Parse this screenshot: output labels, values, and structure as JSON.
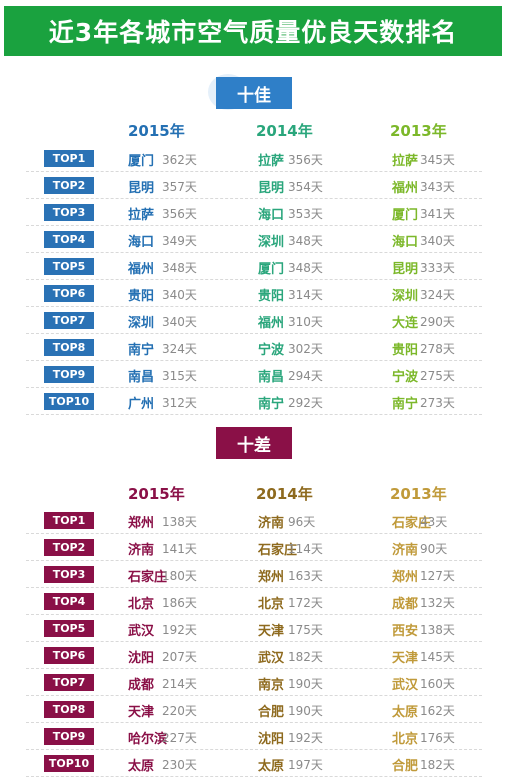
{
  "title": "近3年各城市空气质量优良天数排名",
  "best": {
    "label": "十佳",
    "years": [
      "2015年",
      "2014年",
      "2013年"
    ],
    "rows": [
      {
        "rank": "TOP1",
        "c1": "厦门",
        "d1": "362天",
        "c2": "拉萨",
        "d2": "356天",
        "c3": "拉萨",
        "d3": "345天"
      },
      {
        "rank": "TOP2",
        "c1": "昆明",
        "d1": "357天",
        "c2": "昆明",
        "d2": "354天",
        "c3": "福州",
        "d3": "343天"
      },
      {
        "rank": "TOP3",
        "c1": "拉萨",
        "d1": "356天",
        "c2": "海口",
        "d2": "353天",
        "c3": "厦门",
        "d3": "341天"
      },
      {
        "rank": "TOP4",
        "c1": "海口",
        "d1": "349天",
        "c2": "深圳",
        "d2": "348天",
        "c3": "海口",
        "d3": "340天"
      },
      {
        "rank": "TOP5",
        "c1": "福州",
        "d1": "348天",
        "c2": "厦门",
        "d2": "348天",
        "c3": "昆明",
        "d3": "333天"
      },
      {
        "rank": "TOP6",
        "c1": "贵阳",
        "d1": "340天",
        "c2": "贵阳",
        "d2": "314天",
        "c3": "深圳",
        "d3": "324天"
      },
      {
        "rank": "TOP7",
        "c1": "深圳",
        "d1": "340天",
        "c2": "福州",
        "d2": "310天",
        "c3": "大连",
        "d3": "290天"
      },
      {
        "rank": "TOP8",
        "c1": "南宁",
        "d1": "324天",
        "c2": "宁波",
        "d2": "302天",
        "c3": "贵阳",
        "d3": "278天"
      },
      {
        "rank": "TOP9",
        "c1": "南昌",
        "d1": "315天",
        "c2": "南昌",
        "d2": "294天",
        "c3": "宁波",
        "d3": "275天"
      },
      {
        "rank": "TOP10",
        "c1": "广州",
        "d1": "312天",
        "c2": "南宁",
        "d2": "292天",
        "c3": "南宁",
        "d3": "273天"
      }
    ]
  },
  "worst": {
    "label": "十差",
    "years": [
      "2015年",
      "2014年",
      "2013年"
    ],
    "rows": [
      {
        "rank": "TOP1",
        "c1": "郑州",
        "d1": "138天",
        "c2": "济南",
        "d2": "96天",
        "c3": "石家庄",
        "d3": "43天"
      },
      {
        "rank": "TOP2",
        "c1": "济南",
        "d1": "141天",
        "c2": "石家庄",
        "d2": "114天",
        "c3": "济南",
        "d3": "90天"
      },
      {
        "rank": "TOP3",
        "c1": "石家庄",
        "d1": "180天",
        "c2": "郑州",
        "d2": "163天",
        "c3": "郑州",
        "d3": "127天"
      },
      {
        "rank": "TOP4",
        "c1": "北京",
        "d1": "186天",
        "c2": "北京",
        "d2": "172天",
        "c3": "成都",
        "d3": "132天"
      },
      {
        "rank": "TOP5",
        "c1": "武汉",
        "d1": "192天",
        "c2": "天津",
        "d2": "175天",
        "c3": "西安",
        "d3": "138天"
      },
      {
        "rank": "TOP6",
        "c1": "沈阳",
        "d1": "207天",
        "c2": "武汉",
        "d2": "182天",
        "c3": "天津",
        "d3": "145天"
      },
      {
        "rank": "TOP7",
        "c1": "成都",
        "d1": "214天",
        "c2": "南京",
        "d2": "190天",
        "c3": "武汉",
        "d3": "160天"
      },
      {
        "rank": "TOP8",
        "c1": "天津",
        "d1": "220天",
        "c2": "合肥",
        "d2": "190天",
        "c3": "太原",
        "d3": "162天"
      },
      {
        "rank": "TOP9",
        "c1": "哈尔滨",
        "d1": "227天",
        "c2": "沈阳",
        "d2": "192天",
        "c3": "北京",
        "d3": "176天"
      },
      {
        "rank": "TOP10",
        "c1": "太原",
        "d1": "230天",
        "c2": "太原",
        "d2": "197天",
        "c3": "合肥",
        "d3": "182天"
      }
    ]
  }
}
